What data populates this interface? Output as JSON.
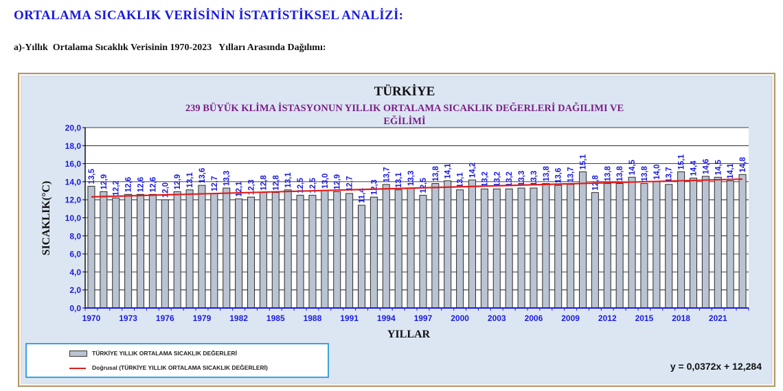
{
  "document": {
    "heading": "ORTALAMA SICAKLIK VERİSİNİN İSTATİSTİKSEL ANALİZİ:",
    "subheading": "a)-Yıllık  Ortalama Sıcaklık Verisinin 1970-2023   Yılları Arasında Dağılımı:"
  },
  "chart_data": {
    "type": "bar",
    "title": "TÜRKİYE",
    "subtitle_line1": "239 BÜYÜK KLİMA İSTASYONUN YILLIK ORTALAMA SICAKLIK DEĞERLERİ DAĞILIMI  VE",
    "subtitle_line2": "EĞİLİMİ",
    "xlabel": "YILLAR",
    "ylabel": "SICAKLIK(°C)",
    "ylim": [
      0,
      20
    ],
    "yticks": [
      "0,0",
      "2,0",
      "4,0",
      "6,0",
      "8,0",
      "10,0",
      "12,0",
      "14,0",
      "16,0",
      "18,0",
      "20,0"
    ],
    "xtick_labels": [
      "1970",
      "1973",
      "1976",
      "1979",
      "1982",
      "1985",
      "1988",
      "1991",
      "1994",
      "1997",
      "2000",
      "2003",
      "2006",
      "2009",
      "2012",
      "2015",
      "2018",
      "2021"
    ],
    "categories": [
      1970,
      1971,
      1972,
      1973,
      1974,
      1975,
      1976,
      1977,
      1978,
      1979,
      1980,
      1981,
      1982,
      1983,
      1984,
      1985,
      1986,
      1987,
      1988,
      1989,
      1990,
      1991,
      1992,
      1993,
      1994,
      1995,
      1996,
      1997,
      1998,
      1999,
      2000,
      2001,
      2002,
      2003,
      2004,
      2005,
      2006,
      2007,
      2008,
      2009,
      2010,
      2011,
      2012,
      2013,
      2014,
      2015,
      2016,
      2017,
      2018,
      2019,
      2020,
      2021,
      2022,
      2023
    ],
    "values": [
      13.5,
      12.9,
      12.2,
      12.6,
      12.6,
      12.6,
      12.0,
      12.9,
      13.1,
      13.6,
      12.7,
      13.3,
      12.1,
      12.3,
      12.8,
      12.8,
      13.1,
      12.5,
      12.5,
      13.0,
      12.9,
      12.7,
      11.4,
      12.3,
      13.7,
      13.1,
      13.3,
      12.5,
      13.8,
      14.1,
      13.1,
      14.2,
      13.2,
      13.2,
      13.2,
      13.3,
      13.3,
      13.8,
      13.6,
      13.7,
      15.1,
      12.8,
      13.8,
      13.8,
      14.5,
      13.8,
      14.0,
      13.7,
      15.1,
      14.4,
      14.6,
      14.5,
      14.1,
      14.8
    ],
    "value_labels": [
      "13,5",
      "12,9",
      "12,2",
      "12,6",
      "12,6",
      "12,6",
      "12,0",
      "12,9",
      "13,1",
      "13,6",
      "12,7",
      "13,3",
      "12,1",
      "12,3",
      "12,8",
      "12,8",
      "13,1",
      "12,5",
      "12,5",
      "13,0",
      "12,9",
      "12,7",
      "11,4",
      "12,3",
      "13,7",
      "13,1",
      "13,3",
      "12,5",
      "13,8",
      "14,1",
      "13,1",
      "14,2",
      "13,2",
      "13,2",
      "13,2",
      "13,3",
      "13,3",
      "13,8",
      "13,6",
      "13,7",
      "15,1",
      "12,8",
      "13,8",
      "13,8",
      "14,5",
      "13,8",
      "14,0",
      "13,7",
      "15,1",
      "14,4",
      "14,6",
      "14,5",
      "14,1",
      "14,8"
    ],
    "grid": true,
    "legend_placement": "bottom-left",
    "legend": {
      "bar_label": "TÜRKİYE YILLIK ORTALAMA SICAKLIK DEĞERLERİ",
      "trend_label": "Doğrusal (TÜRKİYE YILLIK ORTALAMA SICAKLIK DEĞERLERİ)"
    },
    "trendline": {
      "slope": 0.0372,
      "intercept": 12.284,
      "equation": "y = 0,0372x + 12,284"
    },
    "colors": {
      "bar_fill": "#b9c3d2",
      "bar_stroke": "#2b2b2b",
      "trend": "#e21b1b",
      "labels": "#1a1adf",
      "title": "#111111",
      "subtitle": "#7a1f86",
      "plot_bg": "#ffffff",
      "chart_bg": "#dce6f3",
      "legend_border": "#3aa2df"
    }
  }
}
